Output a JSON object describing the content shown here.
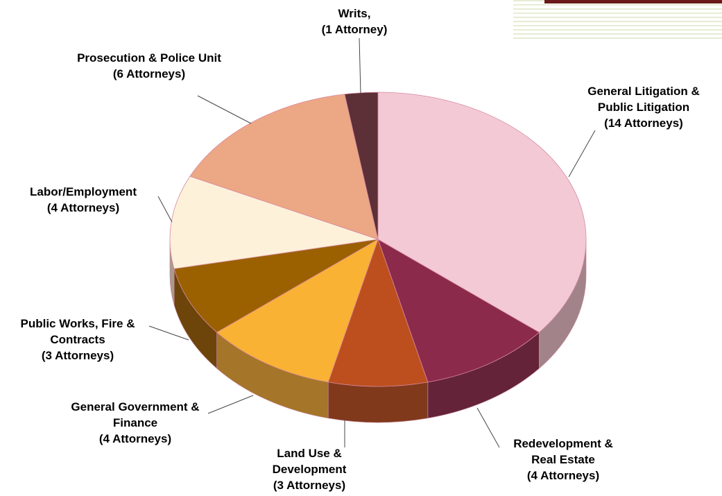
{
  "chart_data": {
    "type": "pie3d",
    "categories": [
      "General Litigation & Public Litigation",
      "Redevelopment & Real Estate",
      "Land Use & Development",
      "General Government & Finance",
      "Public Works, Fire & Contracts",
      "Labor/Employment",
      "Prosecution & Police Unit",
      "Writs,"
    ],
    "values": [
      14,
      4,
      3,
      4,
      3,
      4,
      6,
      1
    ],
    "value_labels": [
      "(14 Attorneys)",
      "(4 Attorneys)",
      "(3 Attorneys)",
      "(4 Attorneys)",
      "(3 Attorneys)",
      "(4 Attorneys)",
      "(6 Attorneys)",
      "(1 Attorney)"
    ],
    "colors": [
      "#f3c9d6",
      "#8c2a4c",
      "#bd4f1e",
      "#f9b234",
      "#9b6100",
      "#fdf1da",
      "#eca784",
      "#5c3036"
    ]
  }
}
